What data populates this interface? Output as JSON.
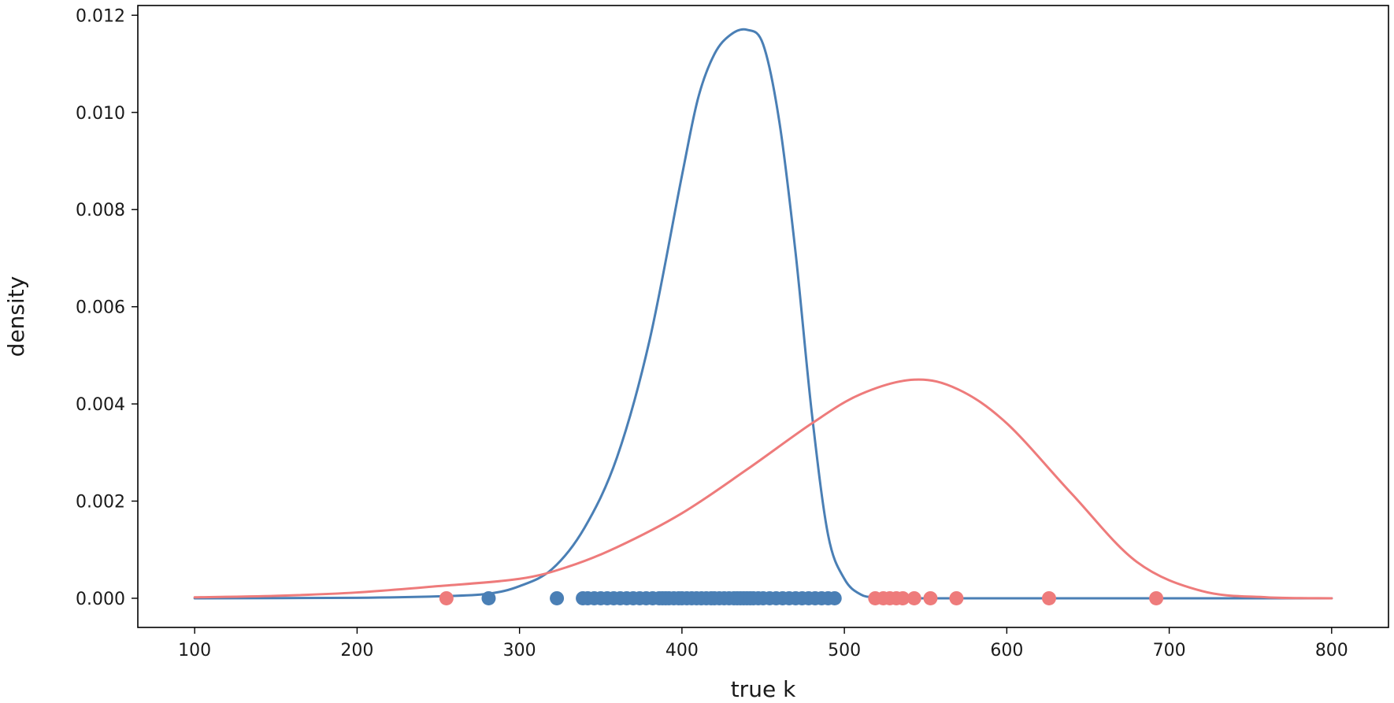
{
  "chart_data": {
    "type": "line",
    "title": "",
    "xlabel": "true k",
    "ylabel": "density",
    "xlim": [
      65,
      835
    ],
    "ylim": [
      -0.0006,
      0.0122
    ],
    "xticks": [
      100,
      200,
      300,
      400,
      500,
      600,
      700,
      800
    ],
    "xtick_labels": [
      "100",
      "200",
      "300",
      "400",
      "500",
      "600",
      "700",
      "800"
    ],
    "yticks": [
      0.0,
      0.002,
      0.004,
      0.006,
      0.008,
      0.01,
      0.012
    ],
    "ytick_labels": [
      "0.000",
      "0.002",
      "0.004",
      "0.006",
      "0.008",
      "0.010",
      "0.012"
    ],
    "grid": false,
    "series": [
      {
        "color": "#4a7fb5",
        "kind": "line",
        "x": [
          100,
          200,
          250,
          280,
          300,
          320,
          340,
          360,
          380,
          400,
          410,
          420,
          430,
          440,
          450,
          460,
          470,
          480,
          490,
          500,
          510,
          520,
          540,
          600,
          700,
          800
        ],
        "y": [
          0.0,
          1e-05,
          4e-05,
          9e-05,
          0.00025,
          0.0006,
          0.00145,
          0.0029,
          0.0053,
          0.0087,
          0.0103,
          0.0112,
          0.0116,
          0.0117,
          0.0114,
          0.0098,
          0.0071,
          0.0038,
          0.0013,
          0.0004,
          8e-05,
          2e-05,
          0.0,
          0.0,
          0.0,
          0.0
        ]
      },
      {
        "color": "#ee7b7b",
        "kind": "line",
        "x": [
          100,
          150,
          200,
          250,
          300,
          330,
          360,
          400,
          440,
          480,
          510,
          543,
          570,
          600,
          640,
          680,
          720,
          760,
          800
        ],
        "y": [
          2e-05,
          5e-05,
          0.00012,
          0.00025,
          0.0004,
          0.00065,
          0.00105,
          0.00175,
          0.00265,
          0.0036,
          0.0042,
          0.0045,
          0.0043,
          0.0036,
          0.00215,
          0.00075,
          0.00015,
          2e-05,
          0.0
        ]
      },
      {
        "color": "#4a7fb5",
        "kind": "scatter",
        "x": [
          281,
          323,
          339,
          342,
          346,
          350,
          354,
          358,
          362,
          366,
          370,
          374,
          378,
          382,
          386,
          388,
          390,
          392,
          395,
          398,
          400,
          403,
          406,
          409,
          412,
          415,
          418,
          420,
          423,
          426,
          429,
          432,
          434,
          436,
          438,
          440,
          442,
          444,
          447,
          450,
          454,
          458,
          462,
          466,
          470,
          474,
          478,
          482,
          486,
          490,
          494
        ],
        "y": [
          0.0,
          0.0,
          0.0,
          0.0,
          0.0,
          0.0,
          0.0,
          0.0,
          0.0,
          0.0,
          0.0,
          0.0,
          0.0,
          0.0,
          0.0,
          0.0,
          0.0,
          0.0,
          0.0,
          0.0,
          0.0,
          0.0,
          0.0,
          0.0,
          0.0,
          0.0,
          0.0,
          0.0,
          0.0,
          0.0,
          0.0,
          0.0,
          0.0,
          0.0,
          0.0,
          0.0,
          0.0,
          0.0,
          0.0,
          0.0,
          0.0,
          0.0,
          0.0,
          0.0,
          0.0,
          0.0,
          0.0,
          0.0,
          0.0,
          0.0,
          0.0
        ]
      },
      {
        "color": "#ee7b7b",
        "kind": "scatter",
        "x": [
          255,
          519,
          524,
          528,
          532,
          536,
          543,
          553,
          569,
          626,
          692
        ],
        "y": [
          0.0,
          0.0,
          0.0,
          0.0,
          0.0,
          0.0,
          0.0,
          0.0,
          0.0,
          0.0,
          0.0
        ]
      }
    ]
  }
}
